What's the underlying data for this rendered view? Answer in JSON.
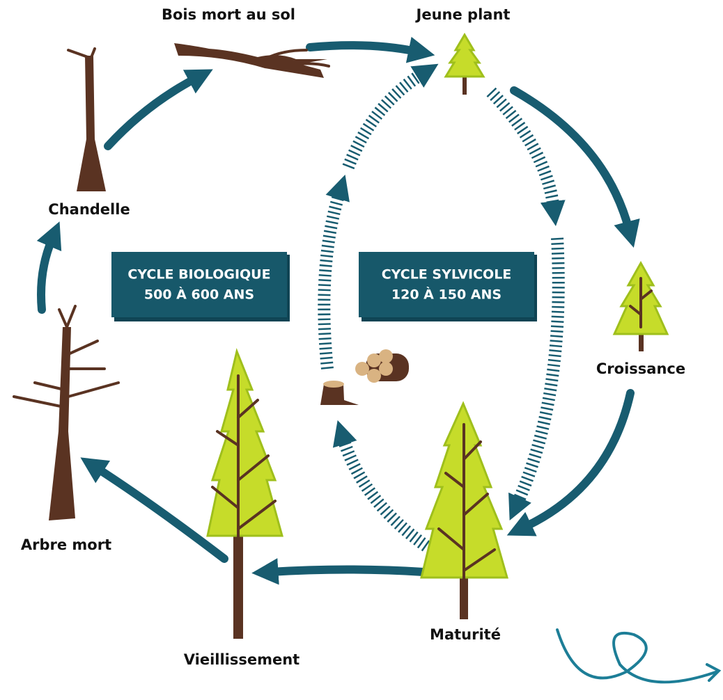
{
  "nodes": [
    {
      "label": "Bois mort au sol"
    },
    {
      "label": "Jeune plant"
    },
    {
      "label": "Croissance"
    },
    {
      "label": "Maturité"
    },
    {
      "label": "Vieillissement"
    },
    {
      "label": "Arbre mort"
    },
    {
      "label": "Chandelle"
    }
  ],
  "cycles": [
    {
      "title": "CYCLE BIOLOGIQUE",
      "duration": "500 À 600 ANS"
    },
    {
      "title": "CYCLE SYLVICOLE",
      "duration": "120 À 150 ANS"
    }
  ]
}
